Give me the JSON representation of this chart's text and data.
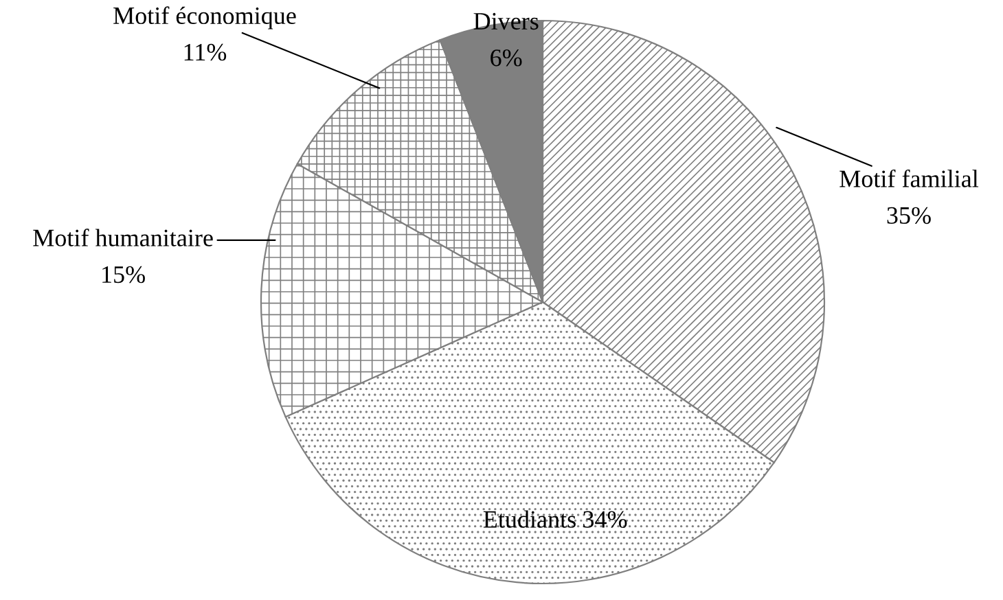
{
  "chart_data": {
    "type": "pie",
    "categories": [
      "Motif familial",
      "Etudiants",
      "Motif humanitaire",
      "Motif économique",
      "Divers"
    ],
    "values": [
      35,
      34,
      15,
      11,
      6
    ],
    "value_labels": [
      "35%",
      "34%",
      "15%",
      "11%",
      "6%"
    ],
    "colors": [
      "#7f7f7f",
      "#7f7f7f",
      "#7f7f7f",
      "#7f7f7f",
      "#808080"
    ]
  }
}
